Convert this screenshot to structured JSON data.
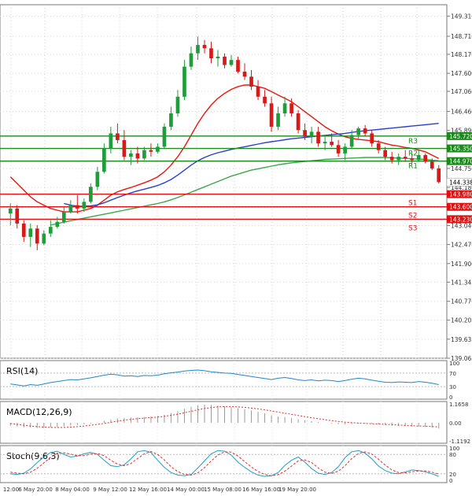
{
  "chart_data": {
    "type": "candlestick",
    "symbol_note": "price chart with moving averages, support/resistance levels and oscillators",
    "x_labels": [
      "12:00",
      "6 May 20:00",
      "8 May 04:00",
      "9 May 12:00",
      "12 May 16:00",
      "14 May 00:00",
      "15 May 08:00",
      "16 May 16:00",
      "19 May 20:00"
    ],
    "price_axis": {
      "ylim": [
        139.065,
        149.655
      ],
      "ticks": [
        149.31,
        148.71,
        148.17,
        147.6,
        147.06,
        146.46,
        145.89,
        145.35,
        144.75,
        144.18,
        143.58,
        143.04,
        142.47,
        141.9,
        141.345,
        140.77,
        140.205,
        139.635,
        139.065
      ]
    },
    "current_price": {
      "label": "144.338",
      "value": 144.338
    },
    "levels": [
      {
        "name": "R3",
        "value": 145.72,
        "label": "145.720",
        "color": "#1a8a1a"
      },
      {
        "name": "R2",
        "value": 145.35,
        "label": "145.350",
        "color": "#1a8a1a"
      },
      {
        "name": "R1",
        "value": 144.97,
        "label": "144.970",
        "color": "#1a8a1a"
      },
      {
        "name": "S1",
        "value": 143.98,
        "label": "143.980",
        "color": "#dd1111"
      },
      {
        "name": "S2",
        "value": 143.6,
        "label": "143.600",
        "color": "#dd1111"
      },
      {
        "name": "S3",
        "value": 143.23,
        "label": "143.230",
        "color": "#dd1111"
      }
    ],
    "candles": [
      [
        143.4,
        143.7,
        143.05,
        143.55
      ],
      [
        143.55,
        143.65,
        142.95,
        143.1
      ],
      [
        143.1,
        143.2,
        142.55,
        142.7
      ],
      [
        142.7,
        143.1,
        142.4,
        142.95
      ],
      [
        142.95,
        143.05,
        142.3,
        142.5
      ],
      [
        142.5,
        142.9,
        142.45,
        142.8
      ],
      [
        142.8,
        143.2,
        142.7,
        143.0
      ],
      [
        143.0,
        143.3,
        142.95,
        143.15
      ],
      [
        143.15,
        143.6,
        143.1,
        143.45
      ],
      [
        143.45,
        143.8,
        143.4,
        143.65
      ],
      [
        143.65,
        143.95,
        143.4,
        143.55
      ],
      [
        143.55,
        143.85,
        143.45,
        143.75
      ],
      [
        143.75,
        144.3,
        143.7,
        144.2
      ],
      [
        144.2,
        144.8,
        144.1,
        144.65
      ],
      [
        144.65,
        145.5,
        144.6,
        145.35
      ],
      [
        145.35,
        146.0,
        145.2,
        145.8
      ],
      [
        145.8,
        146.1,
        145.5,
        145.6
      ],
      [
        145.6,
        145.9,
        145.0,
        145.1
      ],
      [
        145.1,
        145.3,
        144.85,
        145.2
      ],
      [
        145.2,
        145.4,
        144.9,
        145.05
      ],
      [
        145.05,
        145.4,
        145.0,
        145.3
      ],
      [
        145.3,
        145.5,
        145.1,
        145.25
      ],
      [
        145.25,
        145.5,
        145.2,
        145.4
      ],
      [
        145.4,
        146.1,
        145.35,
        146.0
      ],
      [
        146.0,
        146.6,
        145.9,
        146.4
      ],
      [
        146.4,
        147.1,
        146.3,
        146.9
      ],
      [
        146.9,
        148.0,
        146.8,
        147.8
      ],
      [
        147.8,
        148.4,
        147.7,
        148.2
      ],
      [
        148.2,
        148.7,
        148.0,
        148.45
      ],
      [
        148.45,
        148.6,
        148.2,
        148.35
      ],
      [
        148.35,
        148.55,
        147.9,
        148.05
      ],
      [
        148.05,
        148.3,
        147.8,
        148.1
      ],
      [
        148.1,
        148.2,
        147.75,
        147.85
      ],
      [
        147.85,
        148.15,
        147.8,
        148.0
      ],
      [
        148.0,
        148.1,
        147.6,
        147.65
      ],
      [
        147.65,
        147.9,
        147.4,
        147.5
      ],
      [
        147.5,
        147.7,
        147.1,
        147.2
      ],
      [
        147.2,
        147.4,
        146.8,
        146.9
      ],
      [
        146.9,
        147.1,
        146.6,
        146.7
      ],
      [
        146.7,
        146.9,
        145.85,
        146.0
      ],
      [
        146.0,
        146.6,
        145.9,
        146.4
      ],
      [
        146.4,
        146.9,
        146.3,
        146.7
      ],
      [
        146.7,
        146.85,
        146.3,
        146.4
      ],
      [
        146.4,
        146.5,
        145.8,
        145.9
      ],
      [
        145.9,
        146.1,
        145.6,
        145.7
      ],
      [
        145.7,
        146.0,
        145.5,
        145.85
      ],
      [
        145.85,
        146.0,
        145.4,
        145.5
      ],
      [
        145.5,
        145.7,
        145.3,
        145.55
      ],
      [
        145.55,
        145.8,
        145.4,
        145.45
      ],
      [
        145.45,
        145.6,
        145.1,
        145.2
      ],
      [
        145.2,
        145.5,
        145.0,
        145.4
      ],
      [
        145.4,
        145.9,
        145.35,
        145.75
      ],
      [
        145.75,
        146.0,
        145.6,
        145.95
      ],
      [
        145.95,
        146.05,
        145.7,
        145.8
      ],
      [
        145.8,
        145.9,
        145.4,
        145.5
      ],
      [
        145.5,
        145.6,
        145.2,
        145.3
      ],
      [
        145.3,
        145.4,
        145.0,
        145.1
      ],
      [
        145.1,
        145.25,
        144.9,
        145.0
      ],
      [
        145.0,
        145.2,
        144.85,
        145.1
      ],
      [
        145.1,
        145.3,
        144.95,
        145.05
      ],
      [
        145.05,
        145.2,
        144.9,
        145.0
      ],
      [
        145.0,
        145.3,
        144.95,
        145.15
      ],
      [
        145.15,
        145.2,
        144.9,
        144.95
      ],
      [
        144.95,
        145.05,
        144.7,
        144.75
      ],
      [
        144.75,
        144.85,
        144.3,
        144.34
      ]
    ],
    "moving_averages": [
      {
        "name": "MA fast",
        "color": "#e8170f",
        "values": [
          144.5,
          144.3,
          144.1,
          143.9,
          143.75,
          143.65,
          143.55,
          143.5,
          143.45,
          143.45,
          143.45,
          143.5,
          143.55,
          143.65,
          143.8,
          143.95,
          144.05,
          144.12,
          144.18,
          144.25,
          144.32,
          144.4,
          144.5,
          144.65,
          144.85,
          145.1,
          145.4,
          145.75,
          146.1,
          146.4,
          146.65,
          146.85,
          147.0,
          147.12,
          147.2,
          147.25,
          147.25,
          147.2,
          147.15,
          147.05,
          146.95,
          146.85,
          146.75,
          146.6,
          146.45,
          146.3,
          146.15,
          146.0,
          145.88,
          145.78,
          145.7,
          145.65,
          145.62,
          145.6,
          145.58,
          145.55,
          145.5,
          145.45,
          145.42,
          145.38,
          145.35,
          145.3,
          145.25,
          145.15,
          145.05
        ]
      },
      {
        "name": "MA medium",
        "color": "#2b3fcf",
        "values": [
          null,
          null,
          null,
          null,
          null,
          null,
          null,
          null,
          143.7,
          143.65,
          143.62,
          143.62,
          143.63,
          143.66,
          143.72,
          143.8,
          143.88,
          143.95,
          144.02,
          144.08,
          144.13,
          144.18,
          144.24,
          144.32,
          144.42,
          144.55,
          144.7,
          144.85,
          144.98,
          145.08,
          145.16,
          145.22,
          145.27,
          145.32,
          145.36,
          145.4,
          145.44,
          145.48,
          145.52,
          145.55,
          145.58,
          145.61,
          145.64,
          145.66,
          145.68,
          145.7,
          145.72,
          145.74,
          145.76,
          145.78,
          145.8,
          145.83,
          145.86,
          145.88,
          145.9,
          145.92,
          145.94,
          145.96,
          145.98,
          146.0,
          146.02,
          146.04,
          146.06,
          146.08,
          146.1
        ]
      },
      {
        "name": "MA slow",
        "color": "#3aa84a",
        "values": [
          null,
          null,
          null,
          null,
          null,
          null,
          143.05,
          143.1,
          143.14,
          143.18,
          143.22,
          143.26,
          143.3,
          143.34,
          143.38,
          143.42,
          143.46,
          143.5,
          143.54,
          143.58,
          143.62,
          143.66,
          143.7,
          143.75,
          143.81,
          143.88,
          143.96,
          144.04,
          144.12,
          144.2,
          144.28,
          144.36,
          144.44,
          144.52,
          144.58,
          144.64,
          144.7,
          144.74,
          144.78,
          144.82,
          144.86,
          144.89,
          144.92,
          144.94,
          144.96,
          144.98,
          145.0,
          145.02,
          145.03,
          145.04,
          145.05,
          145.06,
          145.07,
          145.08,
          145.08,
          145.08,
          145.08,
          145.07,
          145.06,
          145.05,
          145.04,
          145.03,
          145.02,
          145.0,
          144.98
        ]
      }
    ],
    "rsi": {
      "label": "RSI(14)",
      "ticks": [
        "100",
        "70",
        "30",
        "0"
      ],
      "ylim": [
        0,
        100
      ],
      "values": [
        38,
        35,
        32,
        36,
        34,
        38,
        42,
        45,
        48,
        51,
        50,
        53,
        56,
        60,
        64,
        67,
        65,
        61,
        62,
        60,
        63,
        62,
        64,
        68,
        71,
        73,
        76,
        78,
        79,
        77,
        74,
        72,
        70,
        69,
        66,
        63,
        60,
        57,
        54,
        51,
        55,
        57,
        54,
        50,
        48,
        50,
        47,
        49,
        48,
        45,
        48,
        52,
        55,
        53,
        49,
        46,
        43,
        42,
        44,
        43,
        42,
        45,
        43,
        40,
        36
      ]
    },
    "macd": {
      "label": "MACD(12,26,9)",
      "ticks": [
        "1.1658",
        "0.00",
        "-1.1192"
      ],
      "ylim": [
        -1.1192,
        1.1658
      ],
      "histogram": [
        -0.18,
        -0.22,
        -0.28,
        -0.3,
        -0.33,
        -0.32,
        -0.3,
        -0.27,
        -0.22,
        -0.18,
        -0.14,
        -0.1,
        -0.05,
        0.02,
        0.12,
        0.2,
        0.26,
        0.3,
        0.32,
        0.34,
        0.36,
        0.38,
        0.42,
        0.5,
        0.6,
        0.72,
        0.86,
        0.98,
        1.08,
        1.12,
        1.1,
        1.06,
        1.02,
        0.96,
        0.9,
        0.84,
        0.76,
        0.68,
        0.58,
        0.46,
        0.4,
        0.36,
        0.3,
        0.22,
        0.15,
        0.1,
        0.05,
        0.0,
        -0.04,
        -0.08,
        -0.1,
        -0.08,
        -0.05,
        -0.04,
        -0.06,
        -0.1,
        -0.14,
        -0.18,
        -0.2,
        -0.22,
        -0.24,
        -0.24,
        -0.26,
        -0.3,
        -0.36
      ],
      "signal": [
        -0.05,
        -0.1,
        -0.15,
        -0.2,
        -0.24,
        -0.27,
        -0.29,
        -0.3,
        -0.29,
        -0.27,
        -0.24,
        -0.2,
        -0.15,
        -0.1,
        -0.04,
        0.03,
        0.1,
        0.16,
        0.21,
        0.25,
        0.29,
        0.32,
        0.35,
        0.4,
        0.46,
        0.53,
        0.62,
        0.71,
        0.8,
        0.88,
        0.94,
        0.98,
        1.0,
        1.0,
        0.98,
        0.95,
        0.91,
        0.86,
        0.8,
        0.73,
        0.66,
        0.59,
        0.52,
        0.45,
        0.38,
        0.31,
        0.25,
        0.19,
        0.13,
        0.08,
        0.04,
        0.01,
        -0.02,
        -0.04,
        -0.06,
        -0.08,
        -0.1,
        -0.12,
        -0.14,
        -0.16,
        -0.18,
        -0.2,
        -0.21,
        -0.23,
        -0.26
      ]
    },
    "stochastic": {
      "label": "Stoch(9,6,3)",
      "ticks": [
        "100",
        "80",
        "20",
        "0"
      ],
      "ylim": [
        0,
        100
      ],
      "k": [
        20,
        18,
        22,
        35,
        55,
        72,
        86,
        90,
        80,
        72,
        75,
        82,
        86,
        80,
        62,
        45,
        42,
        48,
        66,
        88,
        92,
        86,
        62,
        40,
        24,
        16,
        14,
        18,
        38,
        60,
        82,
        92,
        90,
        78,
        56,
        40,
        26,
        16,
        12,
        14,
        24,
        46,
        62,
        72,
        56,
        36,
        22,
        18,
        24,
        42,
        70,
        88,
        92,
        84,
        66,
        44,
        30,
        22,
        20,
        26,
        32,
        30,
        26,
        20,
        12
      ],
      "d": [
        25,
        22,
        20,
        25,
        37,
        54,
        71,
        83,
        85,
        81,
        76,
        76,
        81,
        83,
        76,
        62,
        50,
        45,
        52,
        67,
        82,
        89,
        80,
        63,
        42,
        27,
        18,
        16,
        23,
        39,
        60,
        78,
        88,
        87,
        75,
        58,
        41,
        27,
        18,
        14,
        17,
        28,
        44,
        60,
        63,
        55,
        38,
        25,
        21,
        28,
        45,
        67,
        83,
        88,
        81,
        65,
        47,
        32,
        24,
        23,
        26,
        29,
        29,
        25,
        19
      ]
    }
  }
}
